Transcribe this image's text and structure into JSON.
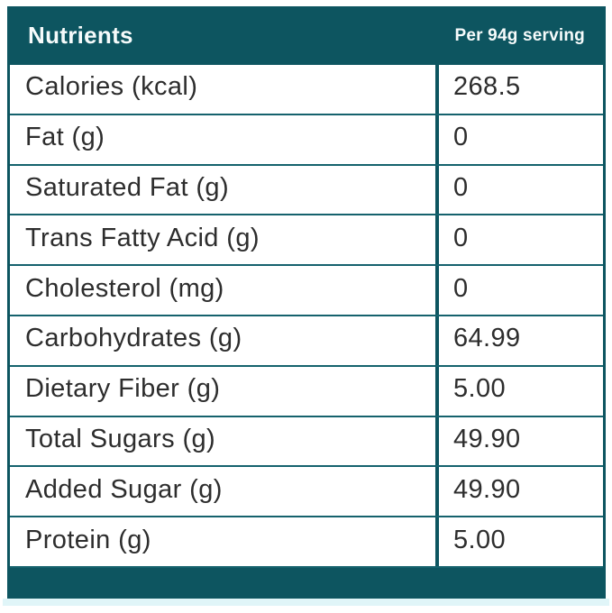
{
  "header": {
    "title": "Nutrients",
    "serving_label": "Per 94g serving"
  },
  "table": {
    "columns": [
      "Nutrients",
      "Per 94g serving"
    ],
    "rows": [
      {
        "label": "Calories (kcal)",
        "value": "268.5"
      },
      {
        "label": "Fat (g)",
        "value": "0"
      },
      {
        "label": "Saturated Fat (g)",
        "value": "0"
      },
      {
        "label": "Trans Fatty Acid (g)",
        "value": "0"
      },
      {
        "label": "Cholesterol (mg)",
        "value": "0"
      },
      {
        "label": "Carbohydrates (g)",
        "value": "64.99"
      },
      {
        "label": "Dietary Fiber (g)",
        "value": "5.00"
      },
      {
        "label": "Total Sugars (g)",
        "value": "49.90"
      },
      {
        "label": "Added Sugar (g)",
        "value": "49.90"
      },
      {
        "label": "Protein (g)",
        "value": "5.00"
      }
    ]
  },
  "colors": {
    "teal": "#0d5560",
    "row_border": "#15626d",
    "text": "#2d2d2d",
    "strip": "#e0f5f8"
  }
}
